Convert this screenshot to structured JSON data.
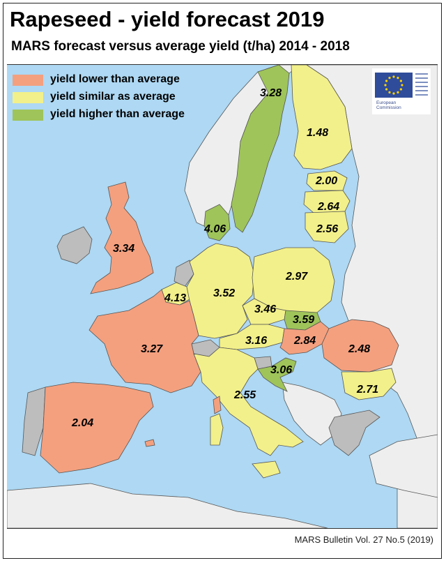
{
  "title": "Rapeseed - yield forecast 2019",
  "subtitle": "MARS forecast versus average yield (t/ha) 2014 - 2018",
  "legend": {
    "lower": "yield lower than average",
    "similar": "yield similar as average",
    "higher": "yield higher than average"
  },
  "colors": {
    "lower": "#f4a07f",
    "similar": "#f2f08a",
    "higher": "#9fc45a",
    "no_data": "#bdbdbd",
    "non_eu": "#eeeeee",
    "sea": "#aed8f3",
    "eu_blue": "#2f4c9a",
    "eu_star": "#ffd400"
  },
  "logo": {
    "line1": "European",
    "line2": "Commission"
  },
  "regions": [
    {
      "name": "Sweden",
      "value": "3.28",
      "category": "higher"
    },
    {
      "name": "Finland",
      "value": "1.48",
      "category": "similar"
    },
    {
      "name": "Estonia",
      "value": "2.00",
      "category": "similar"
    },
    {
      "name": "Latvia",
      "value": "2.64",
      "category": "similar"
    },
    {
      "name": "Lithuania",
      "value": "2.56",
      "category": "similar"
    },
    {
      "name": "Denmark",
      "value": "4.06",
      "category": "higher"
    },
    {
      "name": "United Kingdom",
      "value": "3.34",
      "category": "lower"
    },
    {
      "name": "Belgium/Luxembourg",
      "value": "4.13",
      "category": "similar"
    },
    {
      "name": "Germany",
      "value": "3.52",
      "category": "similar"
    },
    {
      "name": "Poland",
      "value": "2.97",
      "category": "similar"
    },
    {
      "name": "Czechia",
      "value": "3.46",
      "category": "similar"
    },
    {
      "name": "Slovakia",
      "value": "3.59",
      "category": "higher"
    },
    {
      "name": "Austria",
      "value": "3.16",
      "category": "similar"
    },
    {
      "name": "Hungary",
      "value": "2.84",
      "category": "lower"
    },
    {
      "name": "Romania",
      "value": "2.48",
      "category": "lower"
    },
    {
      "name": "France",
      "value": "3.27",
      "category": "lower"
    },
    {
      "name": "Croatia",
      "value": "3.06",
      "category": "higher"
    },
    {
      "name": "Bulgaria",
      "value": "2.71",
      "category": "similar"
    },
    {
      "name": "Italy",
      "value": "2.55",
      "category": "similar"
    },
    {
      "name": "Spain",
      "value": "2.04",
      "category": "lower"
    }
  ],
  "footer": "MARS Bulletin Vol. 27 No.5 (2019)"
}
